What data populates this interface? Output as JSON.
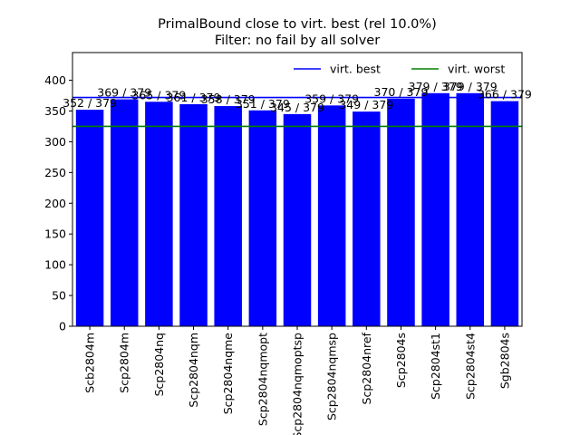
{
  "chart_data": {
    "type": "bar",
    "title": "PrimalBound close to virt. best (rel 10.0%)",
    "subtitle": "Filter: no fail by all solver",
    "categories": [
      "Scb2804m",
      "Scp2804m",
      "Scp2804nq",
      "Scp2804nqm",
      "Scp2804nqme",
      "Scp2804nqmopt",
      "Scp2804nqmoptsp",
      "Scp2804nqmsp",
      "Scp2804nref",
      "Scp2804s",
      "Scp2804st1",
      "Scp2804st4",
      "Sgb2804s"
    ],
    "values": [
      352,
      369,
      365,
      361,
      358,
      351,
      345,
      359,
      349,
      370,
      379,
      379,
      366
    ],
    "total": 379,
    "labels": [
      "352 / 379",
      "369 / 379",
      "365 / 379",
      "361 / 379",
      "358 / 379",
      "351 / 379",
      "345 / 379",
      "359 / 379",
      "349 / 379",
      "370 / 379",
      "379 / 379",
      "379 / 379",
      "366 / 379"
    ],
    "bar_color": "#0000ff",
    "ylim": [
      0,
      445
    ],
    "yticks": [
      0,
      50,
      100,
      150,
      200,
      250,
      300,
      350,
      400
    ],
    "lines": [
      {
        "name": "virt. best",
        "value": 372,
        "color": "#0000ff"
      },
      {
        "name": "virt. worst",
        "value": 325,
        "color": "#008000"
      }
    ],
    "legend_position": "top-right",
    "grid": false,
    "xlabel": "",
    "ylabel": ""
  }
}
